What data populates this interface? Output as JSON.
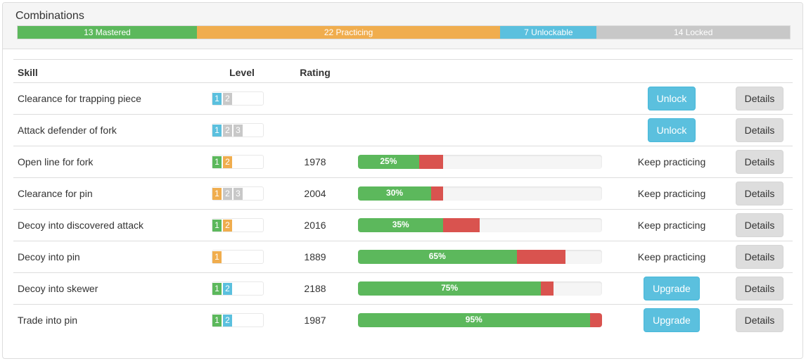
{
  "panel": {
    "title": "Combinations"
  },
  "summary": {
    "segments": [
      {
        "label": "13 Mastered",
        "count": 13,
        "color": "#5cb85c"
      },
      {
        "label": "22 Practicing",
        "count": 22,
        "color": "#f0ad4e"
      },
      {
        "label": "7 Unlockable",
        "count": 7,
        "color": "#5bc0de"
      },
      {
        "label": "14 Locked",
        "count": 14,
        "color": "#c8c8c8"
      }
    ]
  },
  "table": {
    "headers": {
      "skill": "Skill",
      "level": "Level",
      "rating": "Rating"
    },
    "rows": [
      {
        "skill": "Clearance for trapping piece",
        "levels": [
          {
            "n": "1",
            "color": "blue"
          },
          {
            "n": "2",
            "color": "gray"
          }
        ],
        "rating": "",
        "progress": null,
        "action": {
          "type": "button",
          "label": "Unlock"
        },
        "details": "Details"
      },
      {
        "skill": "Attack defender of fork",
        "levels": [
          {
            "n": "1",
            "color": "blue"
          },
          {
            "n": "2",
            "color": "gray"
          },
          {
            "n": "3",
            "color": "gray"
          }
        ],
        "rating": "",
        "progress": null,
        "action": {
          "type": "button",
          "label": "Unlock"
        },
        "details": "Details"
      },
      {
        "skill": "Open line for fork",
        "levels": [
          {
            "n": "1",
            "color": "green"
          },
          {
            "n": "2",
            "color": "orange"
          }
        ],
        "rating": "1978",
        "progress": {
          "label": "25%",
          "green": 25,
          "red": 10
        },
        "action": {
          "type": "text",
          "label": "Keep practicing"
        },
        "details": "Details"
      },
      {
        "skill": "Clearance for pin",
        "levels": [
          {
            "n": "1",
            "color": "orange"
          },
          {
            "n": "2",
            "color": "gray"
          },
          {
            "n": "3",
            "color": "gray"
          }
        ],
        "rating": "2004",
        "progress": {
          "label": "30%",
          "green": 30,
          "red": 5
        },
        "action": {
          "type": "text",
          "label": "Keep practicing"
        },
        "details": "Details"
      },
      {
        "skill": "Decoy into discovered attack",
        "levels": [
          {
            "n": "1",
            "color": "green"
          },
          {
            "n": "2",
            "color": "orange"
          }
        ],
        "rating": "2016",
        "progress": {
          "label": "35%",
          "green": 35,
          "red": 15
        },
        "action": {
          "type": "text",
          "label": "Keep practicing"
        },
        "details": "Details"
      },
      {
        "skill": "Decoy into pin",
        "levels": [
          {
            "n": "1",
            "color": "orange"
          }
        ],
        "rating": "1889",
        "progress": {
          "label": "65%",
          "green": 65,
          "red": 20
        },
        "action": {
          "type": "text",
          "label": "Keep practicing"
        },
        "details": "Details"
      },
      {
        "skill": "Decoy into skewer",
        "levels": [
          {
            "n": "1",
            "color": "green"
          },
          {
            "n": "2",
            "color": "blue"
          }
        ],
        "rating": "2188",
        "progress": {
          "label": "75%",
          "green": 75,
          "red": 5
        },
        "action": {
          "type": "button",
          "label": "Upgrade"
        },
        "details": "Details"
      },
      {
        "skill": "Trade into pin",
        "levels": [
          {
            "n": "1",
            "color": "green"
          },
          {
            "n": "2",
            "color": "blue"
          }
        ],
        "rating": "1987",
        "progress": {
          "label": "95%",
          "green": 95,
          "red": 5
        },
        "action": {
          "type": "button",
          "label": "Upgrade"
        },
        "details": "Details"
      }
    ]
  }
}
